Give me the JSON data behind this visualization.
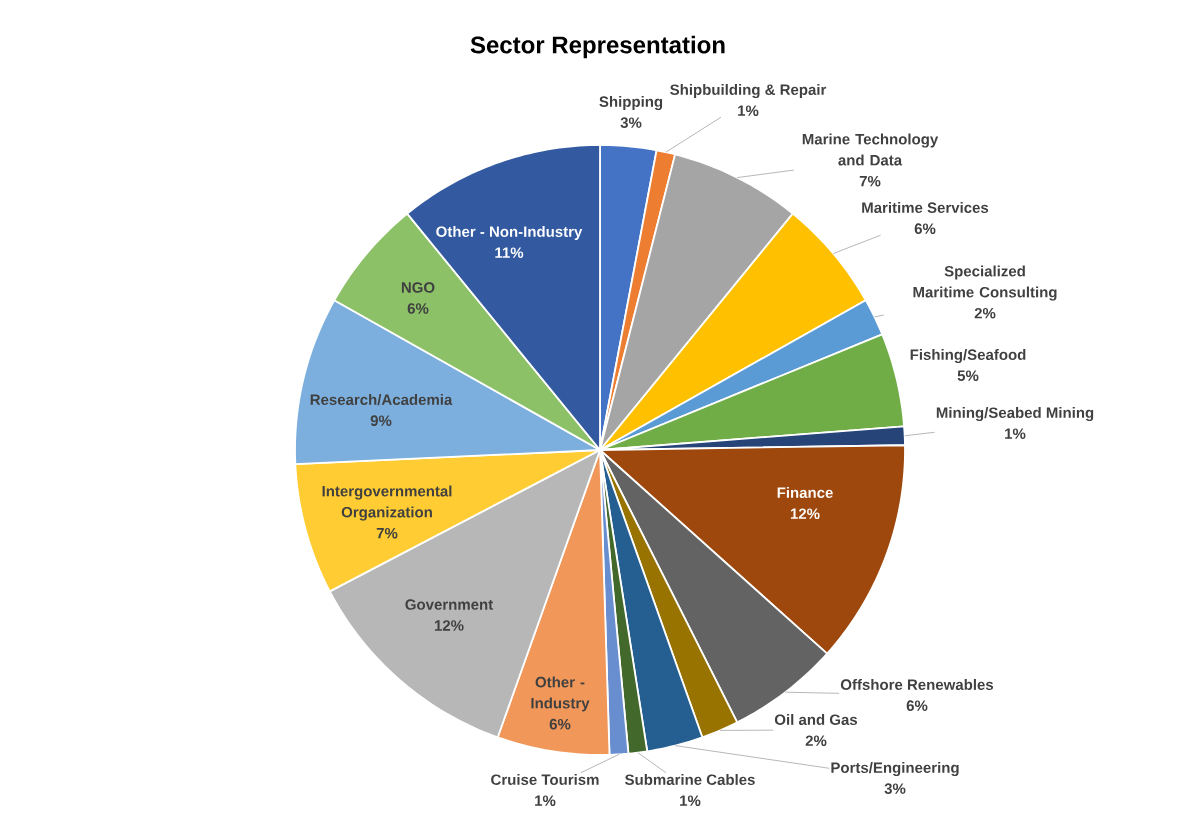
{
  "chart_data": {
    "type": "pie",
    "title": "Sector Representation",
    "categories": [
      "Shipping",
      "Shipbuilding & Repair",
      "Marine Technology and Data",
      "Maritime Services",
      "Specialized Maritime Consulting",
      "Fishing/Seafood",
      "Mining/Seabed Mining",
      "Finance",
      "Offshore Renewables",
      "Oil and Gas",
      "Ports/Engineering",
      "Submarine Cables",
      "Cruise Tourism",
      "Other - Industry",
      "Government",
      "Intergovernmental Organization",
      "Research/Academia",
      "NGO",
      "Other - Non-Industry"
    ],
    "values": [
      3,
      1,
      7,
      6,
      2,
      5,
      1,
      12,
      6,
      2,
      3,
      1,
      1,
      6,
      12,
      7,
      9,
      6,
      11
    ],
    "value_labels": [
      "3%",
      "1%",
      "7%",
      "6%",
      "2%",
      "5%",
      "1%",
      "12%",
      "6%",
      "2%",
      "3%",
      "1%",
      "1%",
      "6%",
      "12%",
      "7%",
      "9%",
      "6%",
      "11%"
    ],
    "colors": [
      "#4472c4",
      "#ed7d31",
      "#a5a5a5",
      "#ffc000",
      "#5b9bd5",
      "#70ad47",
      "#264478",
      "#9e480e",
      "#636363",
      "#997300",
      "#255e91",
      "#43682b",
      "#698ed0",
      "#f1975a",
      "#b7b7b7",
      "#ffcd33",
      "#7cafdd",
      "#8cc168",
      "#335aa1"
    ]
  }
}
